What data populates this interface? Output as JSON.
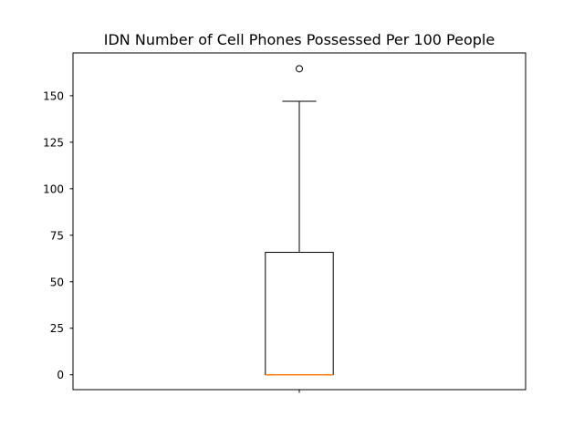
{
  "chart_data": {
    "type": "box",
    "title": "IDN Number of Cell Phones Possessed Per 100 People",
    "xlabel": "",
    "ylabel": "",
    "ylim": [
      -8,
      173
    ],
    "yticks": [
      0,
      25,
      50,
      75,
      100,
      125,
      150
    ],
    "ytick_labels": [
      "0",
      "25",
      "50",
      "75",
      "100",
      "125",
      "150"
    ],
    "xticks": [
      1
    ],
    "xtick_labels": [
      ""
    ],
    "grid": false,
    "box": {
      "whisker_low": 0,
      "q1": 0,
      "median": 0,
      "q3": 65.8,
      "whisker_high": 147,
      "outliers": [
        164.5
      ]
    },
    "colors": {
      "box": "#000000",
      "median": "#ff7f0e",
      "outlier": "#000000"
    }
  }
}
